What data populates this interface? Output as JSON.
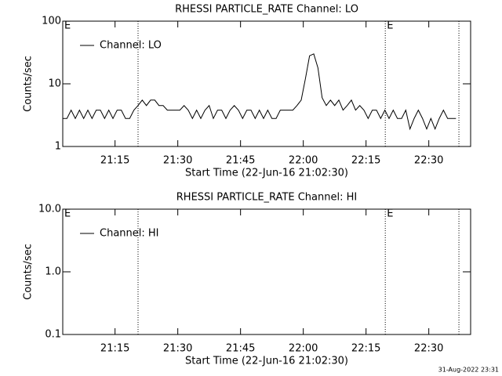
{
  "chart_data": [
    {
      "type": "line",
      "title": "RHESSI PARTICLE_RATE Channel: LO",
      "xlabel": "Start Time (22-Jun-16 21:02:30)",
      "ylabel": "Counts/sec",
      "log_y": true,
      "ylim": [
        1,
        100
      ],
      "yticks": [
        1,
        10,
        100
      ],
      "xlim": [
        0,
        97.5
      ],
      "xticks": [
        {
          "value": 12.5,
          "label": "21:15"
        },
        {
          "value": 27.5,
          "label": "21:30"
        },
        {
          "value": 42.5,
          "label": "21:45"
        },
        {
          "value": 57.5,
          "label": "22:00"
        },
        {
          "value": 72.5,
          "label": "22:15"
        },
        {
          "value": 87.5,
          "label": "22:30"
        }
      ],
      "vlines": [
        18.0,
        77.1,
        94.7
      ],
      "annotations": [
        {
          "text": "E",
          "x": 0
        },
        {
          "text": "E",
          "x": 77.1
        }
      ],
      "legend": "upper left",
      "x": [
        0,
        1,
        2,
        3,
        4,
        5,
        6,
        7,
        8,
        9,
        10,
        11,
        12,
        13,
        14,
        15,
        16,
        17,
        18,
        19,
        20,
        21,
        22,
        23,
        24,
        25,
        26,
        27,
        28,
        29,
        30,
        31,
        32,
        33,
        34,
        35,
        36,
        37,
        38,
        39,
        40,
        41,
        42,
        43,
        44,
        45,
        46,
        47,
        48,
        49,
        50,
        51,
        52,
        53,
        54,
        55,
        56,
        57,
        58,
        59,
        60,
        61,
        62,
        63,
        64,
        65,
        66,
        67,
        68,
        69,
        70,
        71,
        72,
        73,
        74,
        75,
        76,
        77,
        78,
        79,
        80,
        81,
        82,
        83,
        84,
        85,
        86,
        87,
        88,
        89,
        90,
        91,
        92,
        93,
        94
      ],
      "series": [
        {
          "name": "Channel: LO",
          "color": "#000000",
          "values": [
            2.8,
            2.8,
            3.8,
            2.8,
            3.8,
            2.8,
            3.8,
            2.8,
            3.8,
            3.8,
            2.8,
            3.8,
            2.8,
            3.8,
            3.8,
            2.8,
            2.8,
            3.8,
            4.5,
            5.5,
            4.5,
            5.5,
            5.5,
            4.5,
            4.5,
            3.8,
            3.8,
            3.8,
            3.8,
            4.5,
            3.8,
            2.8,
            3.8,
            2.8,
            3.8,
            4.5,
            2.8,
            3.8,
            3.8,
            2.8,
            3.8,
            4.5,
            3.8,
            2.8,
            3.8,
            3.8,
            2.8,
            3.8,
            2.8,
            3.8,
            2.8,
            2.8,
            3.8,
            3.8,
            3.8,
            3.8,
            4.5,
            5.5,
            12,
            28,
            30,
            18,
            6,
            4.5,
            5.5,
            4.5,
            5.5,
            3.8,
            4.5,
            5.5,
            3.8,
            4.5,
            3.8,
            2.8,
            3.8,
            3.8,
            2.8,
            3.8,
            2.8,
            3.8,
            2.8,
            2.8,
            3.8,
            1.9,
            2.8,
            3.8,
            2.8,
            1.9,
            2.8,
            1.9,
            2.8,
            3.8,
            2.8,
            2.8,
            2.8
          ]
        }
      ]
    },
    {
      "type": "line",
      "title": "RHESSI PARTICLE_RATE Channel: HI",
      "xlabel": "Start Time (22-Jun-16 21:02:30)",
      "ylabel": "Counts/sec",
      "log_y": true,
      "ylim": [
        0.1,
        10
      ],
      "yticks": [
        0.1,
        {
          "value": 1,
          "label": "1.0"
        },
        {
          "value": 10,
          "label": "10.0"
        }
      ],
      "xlim": [
        0,
        97.5
      ],
      "xticks": [
        {
          "value": 12.5,
          "label": "21:15"
        },
        {
          "value": 27.5,
          "label": "21:30"
        },
        {
          "value": 42.5,
          "label": "21:45"
        },
        {
          "value": 57.5,
          "label": "22:00"
        },
        {
          "value": 72.5,
          "label": "22:15"
        },
        {
          "value": 87.5,
          "label": "22:30"
        }
      ],
      "vlines": [
        18.0,
        77.1,
        94.7
      ],
      "annotations": [
        {
          "text": "E",
          "x": 0
        },
        {
          "text": "E",
          "x": 77.1
        }
      ],
      "legend": "upper left",
      "x": [],
      "series": [
        {
          "name": "Channel: HI",
          "color": "#000000",
          "values": []
        }
      ]
    }
  ],
  "footer": "31-Aug-2022 23:31"
}
